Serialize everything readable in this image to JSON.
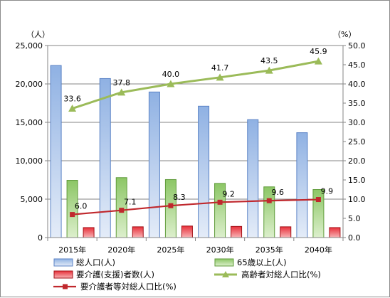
{
  "colors": {
    "total_bar": "#a9c4ea",
    "total_bar_dark": "#5b83c6",
    "elderly_bar": "#a4d27e",
    "elderly_bar_dark": "#5f9b3a",
    "care_bar": "#e8303a",
    "care_bar_dark": "#a31218",
    "elderly_ratio_line": "#9bbb59",
    "care_ratio_line": "#c0282d",
    "grid": "#868686"
  },
  "chart_data": {
    "type": "bar",
    "categories": [
      "2015年",
      "2020年",
      "2025年",
      "2030年",
      "2035年",
      "2040年"
    ],
    "y_left": {
      "unit_label": "（人）",
      "ylim": [
        0,
        25000
      ],
      "ticks": [
        "0",
        "5,000",
        "10,000",
        "15,000",
        "20,000",
        "25,000"
      ],
      "tick_values": [
        0,
        5000,
        10000,
        15000,
        20000,
        25000
      ]
    },
    "y_right": {
      "unit_label": "（%）",
      "ylim": [
        0,
        50
      ],
      "ticks": [
        "0.0",
        "5.0",
        "10.0",
        "15.0",
        "20.0",
        "25.0",
        "30.0",
        "35.0",
        "40.0",
        "45.0",
        "50.0"
      ],
      "tick_values": [
        0,
        5,
        10,
        15,
        20,
        25,
        30,
        35,
        40,
        45,
        50
      ]
    },
    "grid": true,
    "legend_position": "bottom",
    "series": [
      {
        "name": "総人口(人)",
        "type": "bar",
        "axis": "left",
        "values": [
          22400,
          20700,
          18950,
          17100,
          15350,
          13650
        ]
      },
      {
        "name": "65歳以上(人)",
        "type": "bar",
        "axis": "left",
        "values": [
          7450,
          7800,
          7550,
          7050,
          6600,
          6250
        ]
      },
      {
        "name": "要介護(支援)者数(人)",
        "type": "bar",
        "axis": "left",
        "values": [
          1300,
          1400,
          1500,
          1450,
          1400,
          1300
        ]
      },
      {
        "name": "高齢者対総人口比(%)",
        "type": "line",
        "axis": "right",
        "values": [
          33.6,
          37.8,
          40.0,
          41.7,
          43.5,
          45.9
        ],
        "labels": [
          "33.6",
          "37.8",
          "40.0",
          "41.7",
          "43.5",
          "45.9"
        ]
      },
      {
        "name": "要介護者等対総人口比(%)",
        "type": "line",
        "axis": "right",
        "values": [
          6.0,
          7.1,
          8.3,
          9.2,
          9.6,
          9.9
        ],
        "labels": [
          "6.0",
          "7.1",
          "8.3",
          "9.2",
          "9.6",
          "9.9"
        ]
      }
    ]
  }
}
